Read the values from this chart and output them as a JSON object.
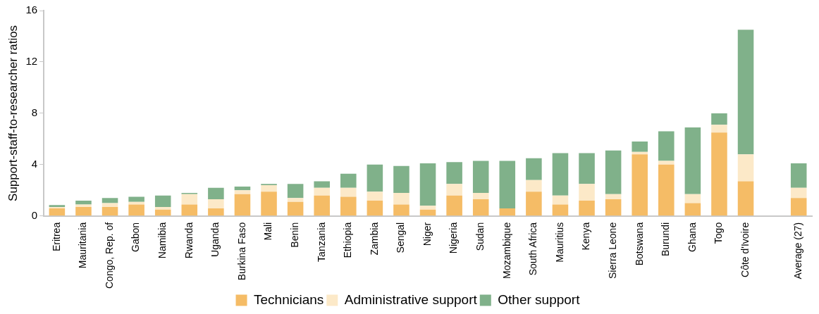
{
  "chart_data": {
    "type": "bar",
    "stacked": true,
    "ylabel": "Support-staff-to-researcher ratios",
    "categories": [
      "Eritrea",
      "Mauritania",
      "Congo, Rep. of",
      "Gabon",
      "Namibia",
      "Rwanda",
      "Uganda",
      "Burkina Faso",
      "Mali",
      "Benin",
      "Tanzania",
      "Ethiopia",
      "Zambia",
      "Sengal",
      "Niger",
      "Nigeria",
      "Sudan",
      "Mozambique",
      "South Africa",
      "Mauritius",
      "Kenya",
      "Sierra Leone",
      "Botswana",
      "Burundi",
      "Ghana",
      "Togo",
      "Côte d'Ivoire",
      null,
      "Average (27)"
    ],
    "series": [
      {
        "name": "Technicians",
        "color": "#f5bc66",
        "values": [
          0.6,
          0.7,
          0.7,
          0.9,
          0.5,
          0.9,
          0.6,
          1.7,
          1.9,
          1.1,
          1.6,
          1.5,
          1.2,
          0.9,
          0.5,
          1.6,
          1.3,
          0.6,
          1.9,
          0.9,
          1.2,
          1.3,
          4.8,
          4.0,
          1.0,
          6.5,
          2.7,
          null,
          1.4
        ]
      },
      {
        "name": "Administrative support",
        "color": "#fce9c8",
        "values": [
          0.1,
          0.2,
          0.3,
          0.2,
          0.2,
          0.8,
          0.7,
          0.3,
          0.5,
          0.3,
          0.6,
          0.7,
          0.7,
          0.9,
          0.3,
          0.9,
          0.5,
          0.0,
          0.9,
          0.7,
          1.3,
          0.4,
          0.2,
          0.3,
          0.7,
          0.6,
          2.1,
          null,
          0.8
        ]
      },
      {
        "name": "Other support",
        "color": "#80b18a",
        "values": [
          0.15,
          0.3,
          0.4,
          0.4,
          0.9,
          0.1,
          0.9,
          0.3,
          0.1,
          1.1,
          0.5,
          1.1,
          2.1,
          2.1,
          3.3,
          1.7,
          2.5,
          3.7,
          1.7,
          3.3,
          2.4,
          3.4,
          0.8,
          2.3,
          5.2,
          0.9,
          9.7,
          null,
          1.9
        ]
      }
    ],
    "ylim": [
      0,
      16
    ],
    "yticks": [
      0,
      4,
      8,
      12,
      16
    ],
    "grid": false,
    "legend": "bottom"
  }
}
